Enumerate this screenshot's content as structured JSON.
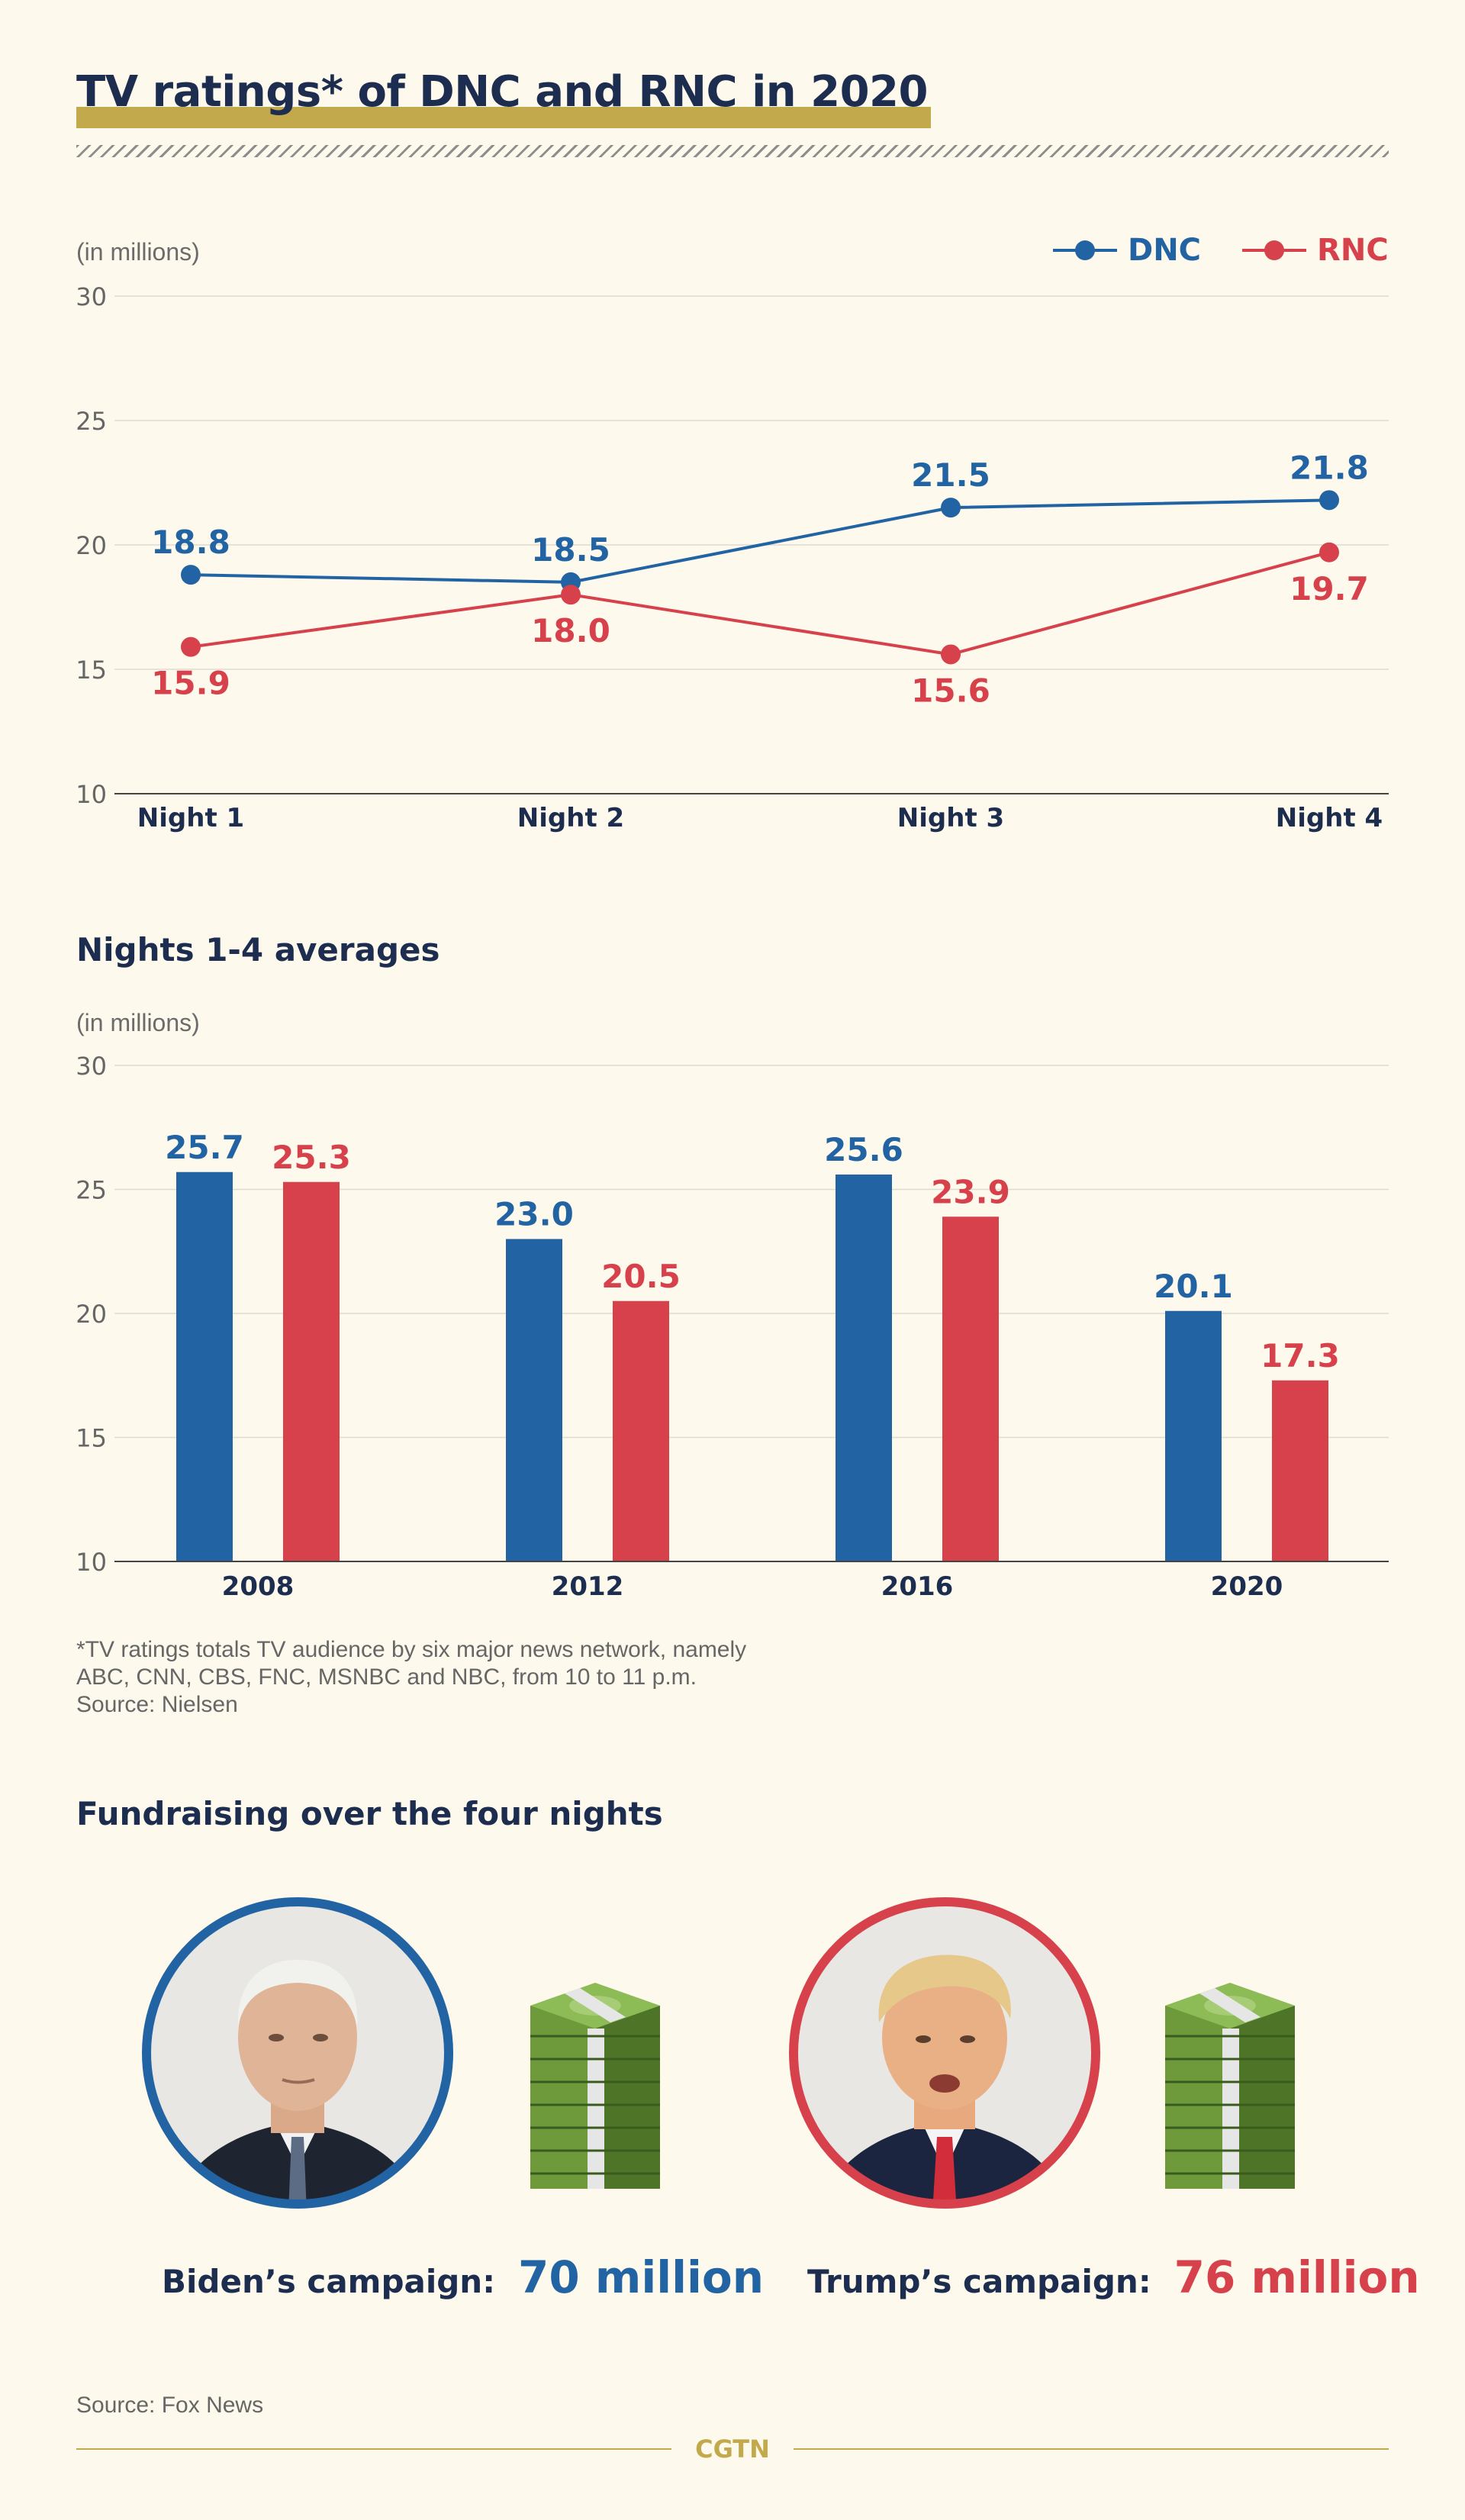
{
  "title": "TV ratings* of DNC and RNC in 2020",
  "colors": {
    "dnc": "#2264a3",
    "rnc": "#d6414b",
    "accent": "#c2aa4c",
    "navy": "#1d2d4f"
  },
  "legend": {
    "dnc": "DNC",
    "rnc": "RNC"
  },
  "line_section": {
    "unit": "(in millions)"
  },
  "bar_section": {
    "title": "Nights 1-4 averages",
    "unit": "(in millions)"
  },
  "notes": {
    "line1": "*TV ratings totals TV audience by six major news network, namely",
    "line2": "ABC, CNN, CBS, FNC, MSNBC and NBC, from 10 to 11 p.m.",
    "line3": "Source: Nielsen"
  },
  "fundraising": {
    "title": "Fundraising over the four nights",
    "biden_label": "Biden’s campaign:",
    "biden_amount": "70 million",
    "trump_label": "Trump’s campaign:",
    "trump_amount": "76 million",
    "source": "Source: Fox News"
  },
  "brand": "CGTN",
  "icons": [
    "biden-portrait-icon",
    "trump-portrait-icon",
    "money-stack-icon"
  ],
  "chart_data": [
    {
      "type": "line",
      "categories": [
        "Night 1",
        "Night 2",
        "Night 3",
        "Night 4"
      ],
      "series": [
        {
          "name": "DNC",
          "values": [
            18.8,
            18.5,
            21.5,
            21.8
          ],
          "labels": [
            "18.8",
            "18.5",
            "21.5",
            "21.8"
          ]
        },
        {
          "name": "RNC",
          "values": [
            15.9,
            18.0,
            15.6,
            19.7
          ],
          "labels": [
            "15.9",
            "18.0",
            "15.6",
            "19.7"
          ]
        }
      ],
      "ylim": [
        10,
        30
      ],
      "yticks": [
        10,
        15,
        20,
        25,
        30
      ],
      "ylabel": "(in millions)",
      "grid": true,
      "legend": "top-right"
    },
    {
      "type": "bar",
      "title": "Nights 1-4 averages",
      "categories": [
        "2008",
        "2012",
        "2016",
        "2020"
      ],
      "series": [
        {
          "name": "DNC",
          "values": [
            25.7,
            23.0,
            25.6,
            20.1
          ],
          "labels": [
            "25.7",
            "23.0",
            "25.6",
            "20.1"
          ]
        },
        {
          "name": "RNC",
          "values": [
            25.3,
            20.5,
            23.9,
            17.3
          ],
          "labels": [
            "25.3",
            "20.5",
            "23.9",
            "17.3"
          ]
        }
      ],
      "ylim": [
        10,
        30
      ],
      "yticks": [
        10,
        15,
        20,
        25,
        30
      ],
      "ylabel": "(in millions)",
      "grid": true
    }
  ]
}
